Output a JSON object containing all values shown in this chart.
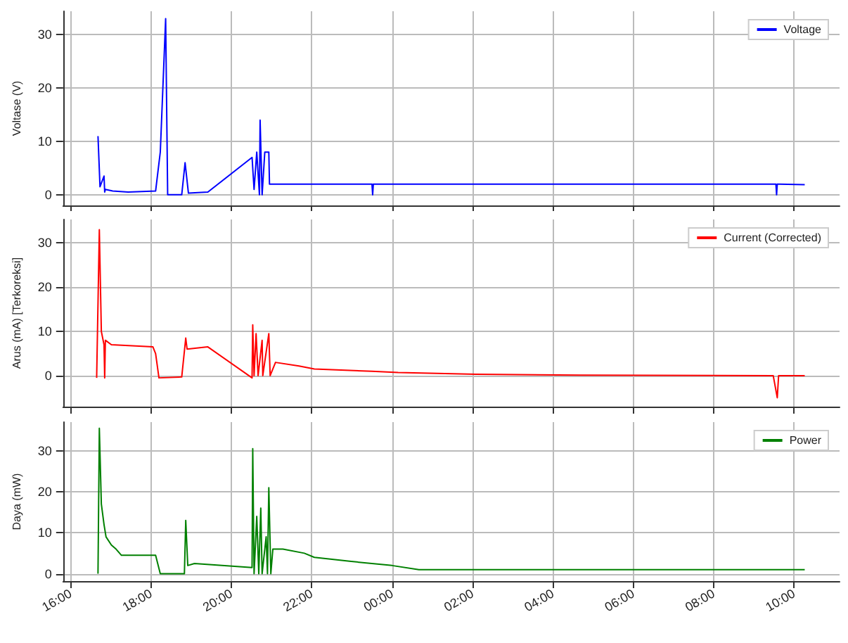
{
  "chart_data": [
    {
      "type": "line",
      "ylabel": "Voltase (V)",
      "xlim": [
        "--01-01T15:49",
        "--01-02T11:08"
      ],
      "xticks": [
        {
          "value": "--01-01T16:00",
          "label": null
        },
        {
          "value": "--01-01T18:00",
          "label": null
        },
        {
          "value": "--01-01T20:00",
          "label": null
        },
        {
          "value": "--01-01T22:00",
          "label": null
        },
        {
          "value": "--01-02T00:00",
          "label": null
        },
        {
          "value": "--01-02T02:00",
          "label": null
        },
        {
          "value": "--01-02T04:00",
          "label": null
        },
        {
          "value": "--01-02T06:00",
          "label": null
        },
        {
          "value": "--01-02T08:00",
          "label": null
        },
        {
          "value": "--01-02T10:00",
          "label": null
        }
      ],
      "ylim": [
        -2,
        34.4
      ],
      "yticks": [
        0,
        10,
        20,
        30
      ],
      "grid": true,
      "legend": "top right",
      "tick_labels": "y",
      "series": [
        {
          "name": "Voltage",
          "color": "#0000ff",
          "x": [
            "--01-01T16:41",
            "--01-01T16:44",
            "--01-01T16:45",
            "--01-01T16:50",
            "--01-01T16:51",
            "--01-01T16:52",
            "--01-01T17:03",
            "--01-01T17:26",
            "--01-01T18:07",
            "--01-01T18:14",
            "--01-01T18:22",
            "--01-01T18:25",
            "--01-01T18:46",
            "--01-01T18:51",
            "--01-01T18:56",
            "--01-01T19:25",
            "--01-01T20:31",
            "--01-01T20:34",
            "--01-01T20:38",
            "--01-01T20:42",
            "--01-01T20:43",
            "--01-01T20:46",
            "--01-01T20:50",
            "--01-01T20:56",
            "--01-01T20:57",
            "--01-01T23:30",
            "--01-01T23:31",
            "--01-01T23:32",
            "--01-02T09:33",
            "--01-02T09:34",
            "--01-02T09:35",
            "--01-02T09:38",
            "--01-02T10:16"
          ],
          "values": [
            11,
            1.5,
            1.5,
            3.5,
            0.5,
            1,
            0.7,
            0.5,
            0.7,
            8,
            33,
            0,
            0,
            6,
            0.3,
            0.5,
            7,
            1,
            8,
            0,
            14,
            0,
            8,
            8,
            2,
            2,
            0,
            2,
            2,
            0,
            2,
            2,
            1.9
          ]
        }
      ]
    },
    {
      "type": "line",
      "ylabel": "Arus (mA) [Terkoreksi]",
      "xlim": [
        "--01-01T15:49",
        "--01-02T11:08"
      ],
      "xticks": [
        {
          "value": "--01-01T16:00",
          "label": null
        },
        {
          "value": "--01-01T18:00",
          "label": null
        },
        {
          "value": "--01-01T20:00",
          "label": null
        },
        {
          "value": "--01-01T22:00",
          "label": null
        },
        {
          "value": "--01-02T00:00",
          "label": null
        },
        {
          "value": "--01-02T02:00",
          "label": null
        },
        {
          "value": "--01-02T04:00",
          "label": null
        },
        {
          "value": "--01-02T06:00",
          "label": null
        },
        {
          "value": "--01-02T08:00",
          "label": null
        },
        {
          "value": "--01-02T10:00",
          "label": null
        }
      ],
      "ylim": [
        -7,
        35.3
      ],
      "yticks": [
        0,
        10,
        20,
        30
      ],
      "grid": true,
      "legend": "top right",
      "tick_labels": "y",
      "series": [
        {
          "name": "Current (Corrected)",
          "color": "#ff0000",
          "x": [
            "--01-01T16:39",
            "--01-01T16:43",
            "--01-01T16:46",
            "--01-01T16:50",
            "--01-01T16:51",
            "--01-01T16:52",
            "--01-01T17:01",
            "--01-01T18:03",
            "--01-01T18:07",
            "--01-01T18:12",
            "--01-01T18:46",
            "--01-01T18:52",
            "--01-01T18:54",
            "--01-01T19:25",
            "--01-01T20:31",
            "--01-01T20:32",
            "--01-01T20:34",
            "--01-01T20:37",
            "--01-01T20:40",
            "--01-01T20:46",
            "--01-01T20:47",
            "--01-01T20:56",
            "--01-01T20:58",
            "--01-01T21:06",
            "--01-01T21:41",
            "--01-01T22:04",
            "--01-01T23:30",
            "--01-02T00:09",
            "--01-02T02:05",
            "--01-02T04:41",
            "--01-02T09:29",
            "--01-02T09:35",
            "--01-02T09:37",
            "--01-02T10:16"
          ],
          "values": [
            -0.5,
            33,
            10,
            7,
            -0.5,
            8,
            7,
            6.5,
            5,
            -0.5,
            -0.3,
            8.5,
            6,
            6.5,
            -0.5,
            11.5,
            0,
            9.5,
            0,
            8,
            0,
            9.5,
            0,
            3,
            2.2,
            1.5,
            1,
            0.7,
            0.3,
            0.1,
            0,
            -5,
            0,
            0
          ]
        }
      ]
    },
    {
      "type": "line",
      "ylabel": "Daya (mW)",
      "xlim": [
        "--01-01T15:49",
        "--01-02T11:08"
      ],
      "xticks": [
        {
          "value": "--01-01T16:00",
          "label": "16:00"
        },
        {
          "value": "--01-01T18:00",
          "label": "18:00"
        },
        {
          "value": "--01-01T20:00",
          "label": "20:00"
        },
        {
          "value": "--01-01T22:00",
          "label": "22:00"
        },
        {
          "value": "--01-02T00:00",
          "label": "00:00"
        },
        {
          "value": "--01-02T02:00",
          "label": "02:00"
        },
        {
          "value": "--01-02T04:00",
          "label": "04:00"
        },
        {
          "value": "--01-02T06:00",
          "label": "06:00"
        },
        {
          "value": "--01-02T08:00",
          "label": "08:00"
        },
        {
          "value": "--01-02T10:00",
          "label": "10:00"
        }
      ],
      "ylim": [
        -1.8,
        37
      ],
      "yticks": [
        0,
        10,
        20,
        30
      ],
      "grid": true,
      "legend": "top right",
      "series": [
        {
          "name": "Power",
          "color": "#008000",
          "x": [
            "--01-01T16:41",
            "--01-01T16:43",
            "--01-01T16:46",
            "--01-01T16:50",
            "--01-01T16:53",
            "--01-01T17:01",
            "--01-01T17:08",
            "--01-01T17:16",
            "--01-01T18:07",
            "--01-01T18:14",
            "--01-01T18:50",
            "--01-01T18:52",
            "--01-01T18:55",
            "--01-01T19:05",
            "--01-01T20:31",
            "--01-01T20:32",
            "--01-01T20:34",
            "--01-01T20:38",
            "--01-01T20:41",
            "--01-01T20:44",
            "--01-01T20:46",
            "--01-01T20:52",
            "--01-01T20:54",
            "--01-01T20:56",
            "--01-01T20:59",
            "--01-01T21:02",
            "--01-01T21:17",
            "--01-01T21:49",
            "--01-01T22:04",
            "--01-01T22:59",
            "--01-02T00:00",
            "--01-02T00:40",
            "--01-02T10:16"
          ],
          "values": [
            0,
            35.5,
            17,
            12,
            9,
            7,
            6,
            4.5,
            4.5,
            0,
            0,
            13,
            2,
            2.5,
            1.5,
            30.5,
            0,
            14,
            0,
            16,
            0,
            9,
            0,
            21,
            0,
            6,
            6,
            5,
            4,
            3,
            2,
            1,
            1
          ]
        }
      ]
    }
  ]
}
